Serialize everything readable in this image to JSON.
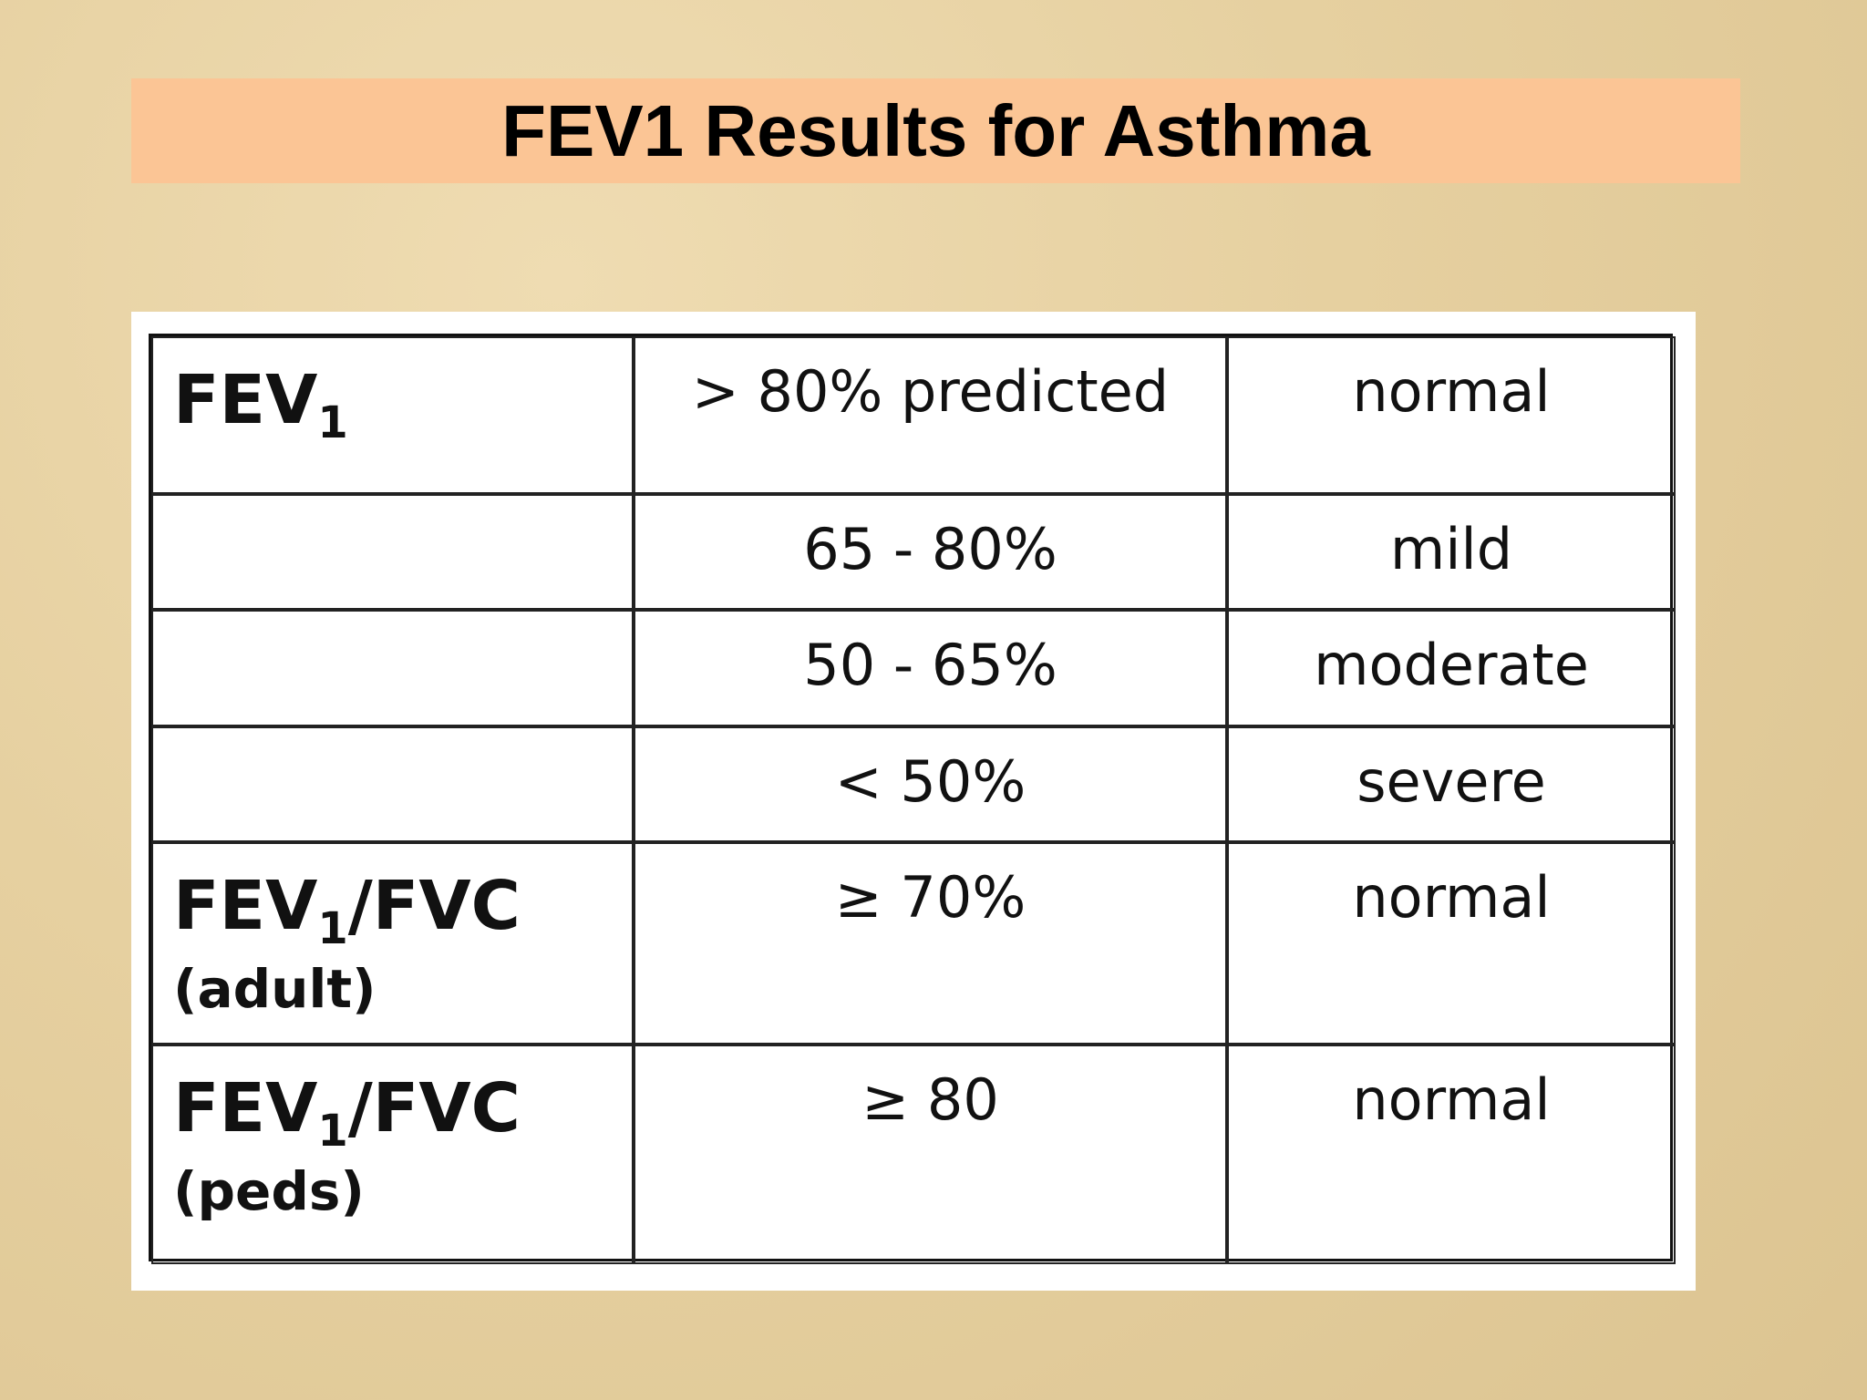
{
  "header": {
    "title": "FEV1 Results for Asthma"
  },
  "table": {
    "rows": [
      {
        "measure": {
          "name": "FEV",
          "sub": "1"
        },
        "range": "> 80% predicted",
        "result": "normal"
      },
      {
        "range": "65 - 80%",
        "result": "mild"
      },
      {
        "range": "50 - 65%",
        "result": "moderate"
      },
      {
        "range": "< 50%",
        "result": "severe"
      },
      {
        "measure": {
          "name": "FEV",
          "sub": "1",
          "rest": "/FVC",
          "note": "(adult)"
        },
        "range": "≥ 70%",
        "result": "normal"
      },
      {
        "measure": {
          "name": "FEV",
          "sub": "1",
          "rest": "/FVC",
          "note": "(peds)"
        },
        "range": "≥ 80",
        "result": "normal"
      }
    ]
  }
}
